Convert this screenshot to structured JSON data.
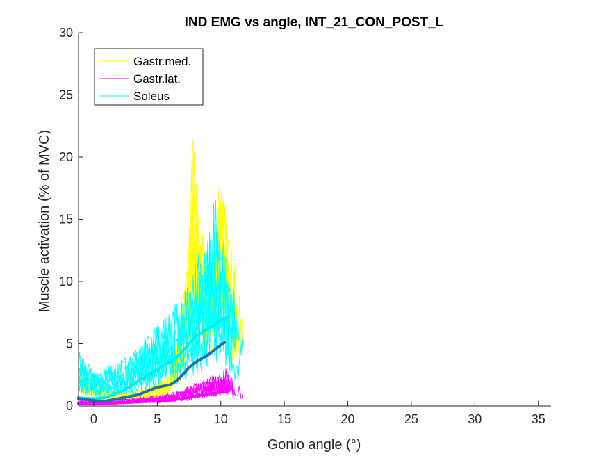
{
  "chart_data": {
    "type": "line",
    "title": "IND EMG vs angle, INT_21_CON_POST_L",
    "xlabel": "Gonio angle (°)",
    "ylabel": "Muscle activation (% of MVC)",
    "xlim": [
      -1.2,
      36
    ],
    "ylim": [
      0,
      30
    ],
    "xticks": [
      0,
      5,
      10,
      15,
      20,
      25,
      30,
      35
    ],
    "yticks": [
      0,
      5,
      10,
      15,
      20,
      25,
      30
    ],
    "grid": false,
    "legend_placement": "top-left",
    "legend": [
      {
        "label": "Gastr.med.",
        "color": "#FFFF00"
      },
      {
        "label": "Gastr.lat.",
        "color": "#FF00FF"
      },
      {
        "label": "Soleus",
        "color": "#00FFFF"
      }
    ],
    "series": [
      {
        "name": "Gastr.med.",
        "color": "#FFFF00",
        "style": "raw-trials",
        "x": [
          -1.2,
          -0.5,
          0.2,
          1,
          1.8,
          2.6,
          3.4,
          4.2,
          5,
          5.8,
          6.5,
          7,
          7.5,
          7.8,
          8.2,
          8.6,
          9,
          9.5,
          10,
          10.4,
          10.8,
          11.2,
          11.6,
          11.9
        ],
        "values": [
          2,
          1.6,
          1.3,
          0.9,
          0.7,
          0.7,
          0.8,
          1,
          1.2,
          1.6,
          3,
          5,
          9,
          15,
          10,
          9,
          7.5,
          9,
          12,
          10.5,
          9,
          7,
          5.5,
          9.5
        ]
      },
      {
        "name": "Gastr.lat.",
        "color": "#FF00FF",
        "style": "raw-trials",
        "x": [
          -1.2,
          -0.5,
          0.2,
          1,
          2,
          3,
          4,
          5,
          6,
          7,
          8,
          9,
          10,
          10.5,
          11,
          11.5,
          11.9
        ],
        "values": [
          0.3,
          0.3,
          0.25,
          0.25,
          0.3,
          0.4,
          0.45,
          0.5,
          0.6,
          0.8,
          1.1,
          1.4,
          1.6,
          1.8,
          1.2,
          0.9,
          0.8
        ]
      },
      {
        "name": "Soleus",
        "color": "#00FFFF",
        "style": "raw-trials",
        "x": [
          -1.2,
          -0.5,
          0.3,
          1,
          2,
          3,
          4,
          5,
          6,
          7,
          7.5,
          8,
          8.5,
          9,
          9.5,
          10,
          10.5,
          11,
          11.5,
          11.9
        ],
        "values": [
          2.5,
          2,
          1.6,
          1.8,
          2,
          2.4,
          3,
          3.6,
          4.2,
          5,
          5.5,
          6.5,
          7,
          8,
          9.5,
          8.5,
          7,
          5.5,
          4.5,
          4.5
        ]
      },
      {
        "name": "Soleus",
        "color": "#00EEEE",
        "style": "mean",
        "x": [
          -1.2,
          -0.5,
          0.3,
          1,
          1.5,
          2,
          2.5,
          3,
          3.5,
          4,
          4.5,
          5,
          5.5,
          6,
          6.5,
          7,
          7.5,
          8,
          8.5,
          9,
          9.5,
          10,
          10.5
        ],
        "values": [
          0.7,
          0.6,
          0.6,
          0.7,
          0.9,
          1.1,
          1.3,
          1.7,
          2,
          2.3,
          2.6,
          2.9,
          3.3,
          3.5,
          3.9,
          4.4,
          5,
          5.6,
          5.9,
          6.2,
          6.5,
          6.9,
          7.1
        ]
      },
      {
        "name": "Gastr.med.",
        "color": "#1F6FA8",
        "style": "mean",
        "x": [
          -1.2,
          -0.5,
          0.3,
          1,
          1.5,
          2,
          2.5,
          3,
          3.5,
          4,
          4.5,
          5,
          5.5,
          6,
          6.5,
          7,
          7.5,
          8,
          8.5,
          9,
          9.5,
          10,
          10.3
        ],
        "values": [
          0.6,
          0.5,
          0.4,
          0.4,
          0.5,
          0.6,
          0.7,
          0.8,
          0.9,
          1.1,
          1.3,
          1.5,
          1.6,
          1.7,
          2,
          2.5,
          3.1,
          3.5,
          3.8,
          4.1,
          4.5,
          4.9,
          5.1
        ]
      },
      {
        "name": "Gastr.lat.",
        "color": "#FF00FF",
        "style": "mean",
        "x": [
          -1.2,
          0,
          1,
          2,
          3,
          4,
          5,
          6,
          7,
          8,
          9,
          10,
          10.5
        ],
        "values": [
          0.2,
          0.2,
          0.2,
          0.25,
          0.3,
          0.35,
          0.4,
          0.45,
          0.6,
          0.8,
          0.95,
          1.1,
          1.15
        ]
      }
    ]
  }
}
